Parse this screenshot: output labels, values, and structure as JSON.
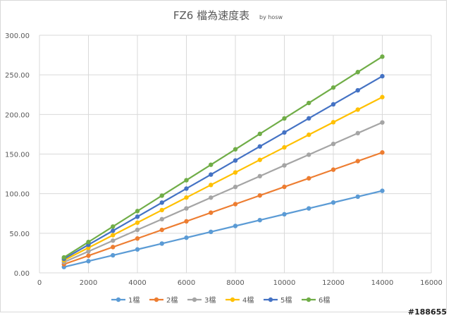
{
  "chart_data": {
    "type": "line",
    "title": "FZ6 檔為速度表",
    "subtitle": "by hosw",
    "xlabel": "",
    "ylabel": "",
    "xlim": [
      0,
      16000
    ],
    "ylim": [
      0,
      300
    ],
    "x_ticks": [
      "0",
      "2000",
      "4000",
      "6000",
      "8000",
      "10000",
      "12000",
      "14000",
      "16000"
    ],
    "y_ticks": [
      "0.00",
      "50.00",
      "100.00",
      "150.00",
      "200.00",
      "250.00",
      "300.00"
    ],
    "grid": true,
    "legend_position": "bottom",
    "x": [
      1000,
      2000,
      3000,
      4000,
      5000,
      6000,
      7000,
      8000,
      9000,
      10000,
      11000,
      12000,
      13000,
      14000
    ],
    "series": [
      {
        "name": "1檔",
        "color": "#5b9bd5",
        "values": [
          7.4,
          14.8,
          22.2,
          29.6,
          37.0,
          44.4,
          51.8,
          59.2,
          66.6,
          74.0,
          81.4,
          88.8,
          96.2,
          103.6
        ]
      },
      {
        "name": "2檔",
        "color": "#ed7d31",
        "values": [
          10.9,
          21.7,
          32.6,
          43.4,
          54.3,
          65.1,
          76.0,
          86.8,
          97.7,
          108.6,
          119.4,
          130.3,
          141.1,
          152.0
        ]
      },
      {
        "name": "3檔",
        "color": "#a5a5a5",
        "values": [
          13.6,
          27.1,
          40.7,
          54.3,
          67.8,
          81.4,
          95.0,
          108.5,
          122.1,
          135.7,
          149.2,
          162.8,
          176.4,
          189.9
        ]
      },
      {
        "name": "4檔",
        "color": "#ffc000",
        "values": [
          15.9,
          31.7,
          47.6,
          63.4,
          79.3,
          95.1,
          111.0,
          126.8,
          142.7,
          158.5,
          174.4,
          190.2,
          206.1,
          221.9
        ]
      },
      {
        "name": "5檔",
        "color": "#4472c4",
        "values": [
          17.7,
          35.5,
          53.2,
          70.9,
          88.7,
          106.4,
          124.1,
          141.9,
          159.6,
          177.3,
          195.1,
          212.8,
          230.5,
          248.3
        ]
      },
      {
        "name": "6檔",
        "color": "#70ad47",
        "values": [
          19.5,
          39.0,
          58.5,
          78.0,
          97.5,
          117.0,
          136.5,
          156.0,
          175.5,
          195.0,
          214.5,
          234.0,
          253.5,
          273.0
        ]
      }
    ]
  },
  "watermark": "#188655"
}
